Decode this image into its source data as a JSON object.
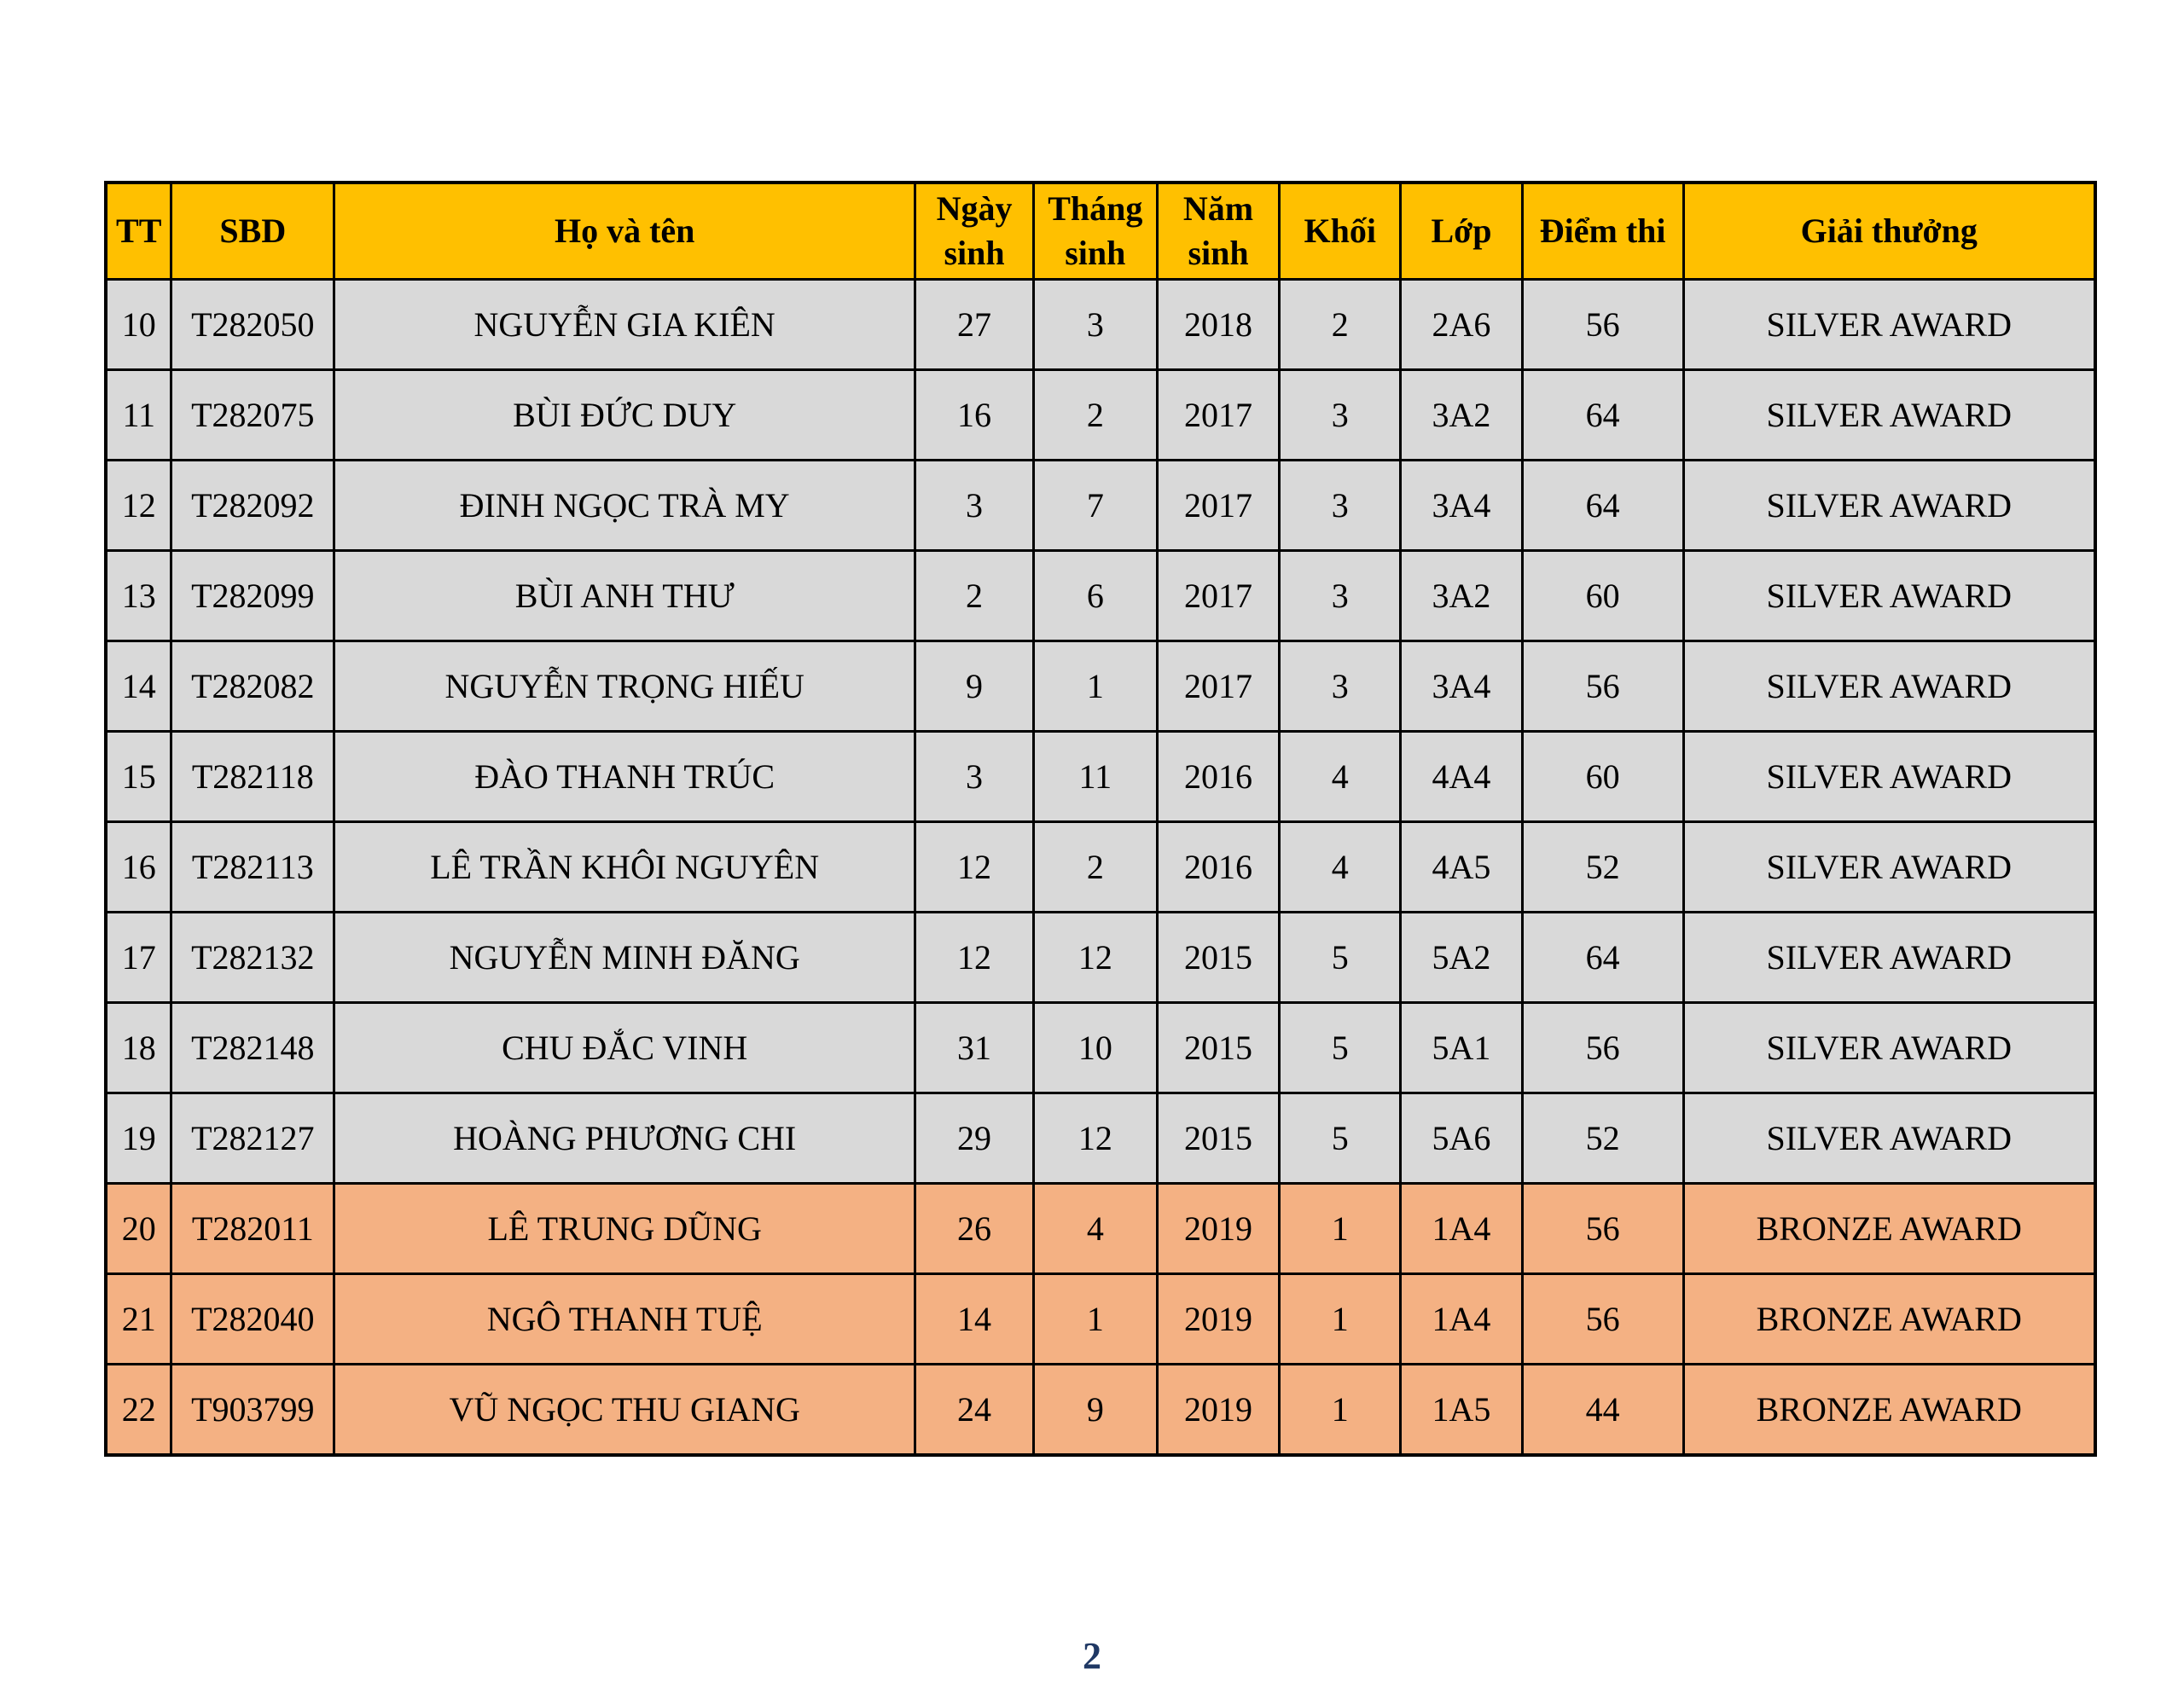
{
  "page": {
    "background": "#ffffff",
    "number": "2"
  },
  "colors": {
    "header_bg": "#FFC000",
    "header_text": "#000000",
    "silver_bg": "#D9D9D9",
    "bronze_bg": "#F4B183",
    "cell_text": "#000000",
    "border": "#000000",
    "page_number": "#1F3864"
  },
  "table": {
    "columns": [
      {
        "key": "tt",
        "label": "TT",
        "width": "3.30%"
      },
      {
        "key": "sbd",
        "label": "SBD",
        "width": "8.18%"
      },
      {
        "key": "name",
        "label": "Họ và tên",
        "width": "29.20%"
      },
      {
        "key": "day",
        "label": "Ngày\nsinh",
        "width": "5.95%"
      },
      {
        "key": "month",
        "label": "Tháng\nsinh",
        "width": "6.21%"
      },
      {
        "key": "year",
        "label": "Năm\nsinh",
        "width": "6.16%"
      },
      {
        "key": "khoi",
        "label": "Khối",
        "width": "6.08%"
      },
      {
        "key": "lop",
        "label": "Lớp",
        "width": "6.12%"
      },
      {
        "key": "score",
        "label": "Điểm thi",
        "width": "8.09%"
      },
      {
        "key": "award",
        "label": "Giải thưởng",
        "width": "20.71%"
      }
    ],
    "rows": [
      {
        "tt": "10",
        "sbd": "T282050",
        "name": "NGUYỄN GIA KIÊN",
        "day": "27",
        "month": "3",
        "year": "2018",
        "khoi": "2",
        "lop": "2A6",
        "score": "56",
        "award": "SILVER AWARD",
        "tier": "silver"
      },
      {
        "tt": "11",
        "sbd": "T282075",
        "name": "BÙI ĐỨC DUY",
        "day": "16",
        "month": "2",
        "year": "2017",
        "khoi": "3",
        "lop": "3A2",
        "score": "64",
        "award": "SILVER AWARD",
        "tier": "silver"
      },
      {
        "tt": "12",
        "sbd": "T282092",
        "name": "ĐINH NGỌC TRÀ MY",
        "day": "3",
        "month": "7",
        "year": "2017",
        "khoi": "3",
        "lop": "3A4",
        "score": "64",
        "award": "SILVER AWARD",
        "tier": "silver"
      },
      {
        "tt": "13",
        "sbd": "T282099",
        "name": "BÙI ANH THƯ",
        "day": "2",
        "month": "6",
        "year": "2017",
        "khoi": "3",
        "lop": "3A2",
        "score": "60",
        "award": "SILVER AWARD",
        "tier": "silver"
      },
      {
        "tt": "14",
        "sbd": "T282082",
        "name": "NGUYỄN TRỌNG HIẾU",
        "day": "9",
        "month": "1",
        "year": "2017",
        "khoi": "3",
        "lop": "3A4",
        "score": "56",
        "award": "SILVER AWARD",
        "tier": "silver"
      },
      {
        "tt": "15",
        "sbd": "T282118",
        "name": "ĐÀO THANH TRÚC",
        "day": "3",
        "month": "11",
        "year": "2016",
        "khoi": "4",
        "lop": "4A4",
        "score": "60",
        "award": "SILVER AWARD",
        "tier": "silver"
      },
      {
        "tt": "16",
        "sbd": "T282113",
        "name": "LÊ TRẦN KHÔI NGUYÊN",
        "day": "12",
        "month": "2",
        "year": "2016",
        "khoi": "4",
        "lop": "4A5",
        "score": "52",
        "award": "SILVER AWARD",
        "tier": "silver"
      },
      {
        "tt": "17",
        "sbd": "T282132",
        "name": "NGUYỄN MINH ĐĂNG",
        "day": "12",
        "month": "12",
        "year": "2015",
        "khoi": "5",
        "lop": "5A2",
        "score": "64",
        "award": "SILVER AWARD",
        "tier": "silver"
      },
      {
        "tt": "18",
        "sbd": "T282148",
        "name": "CHU ĐẮC VINH",
        "day": "31",
        "month": "10",
        "year": "2015",
        "khoi": "5",
        "lop": "5A1",
        "score": "56",
        "award": "SILVER AWARD",
        "tier": "silver"
      },
      {
        "tt": "19",
        "sbd": "T282127",
        "name": "HOÀNG PHƯƠNG CHI",
        "day": "29",
        "month": "12",
        "year": "2015",
        "khoi": "5",
        "lop": "5A6",
        "score": "52",
        "award": "SILVER AWARD",
        "tier": "silver"
      },
      {
        "tt": "20",
        "sbd": "T282011",
        "name": "LÊ TRUNG DŨNG",
        "day": "26",
        "month": "4",
        "year": "2019",
        "khoi": "1",
        "lop": "1A4",
        "score": "56",
        "award": "BRONZE AWARD",
        "tier": "bronze"
      },
      {
        "tt": "21",
        "sbd": "T282040",
        "name": "NGÔ THANH TUỆ",
        "day": "14",
        "month": "1",
        "year": "2019",
        "khoi": "1",
        "lop": "1A4",
        "score": "56",
        "award": "BRONZE AWARD",
        "tier": "bronze"
      },
      {
        "tt": "22",
        "sbd": "T903799",
        "name": "VŨ NGỌC THU GIANG",
        "day": "24",
        "month": "9",
        "year": "2019",
        "khoi": "1",
        "lop": "1A5",
        "score": "44",
        "award": "BRONZE AWARD",
        "tier": "bronze"
      }
    ]
  }
}
